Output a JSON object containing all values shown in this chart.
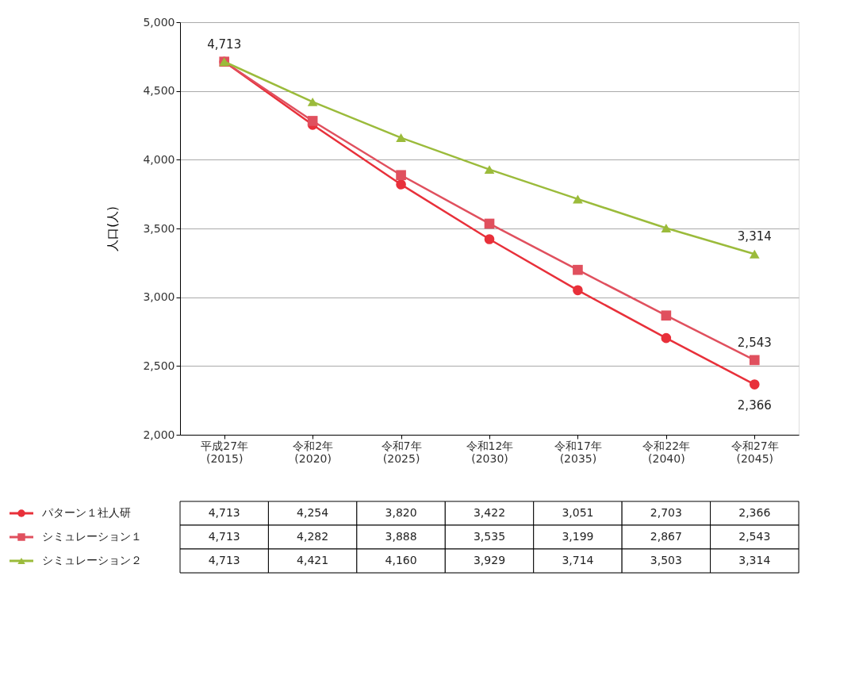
{
  "chart_data": {
    "type": "line",
    "ylabel": "人口(人)",
    "categories": [
      "平成27年(2015)",
      "令和2年(2020)",
      "令和7年(2025)",
      "令和12年(2030)",
      "令和17年(2035)",
      "令和22年(2040)",
      "令和27年(2045)"
    ],
    "series": [
      {
        "name": "パターン１社人研",
        "color": "#e8303a",
        "marker": "circle",
        "values": [
          4713,
          4254,
          3820,
          3422,
          3051,
          2703,
          2366
        ],
        "value_labels": [
          "4,713",
          "4,254",
          "3,820",
          "3,422",
          "3,051",
          "2,703",
          "2,366"
        ]
      },
      {
        "name": "シミュレーション１",
        "color": "#e0505e",
        "marker": "square",
        "values": [
          4713,
          4282,
          3888,
          3535,
          3199,
          2867,
          2543
        ],
        "value_labels": [
          "4,713",
          "4,282",
          "3,888",
          "3,535",
          "3,199",
          "2,867",
          "2,543"
        ]
      },
      {
        "name": "シミュレーション２",
        "color": "#9bbb3b",
        "marker": "triangle",
        "values": [
          4713,
          4421,
          4160,
          3929,
          3714,
          3503,
          3314
        ],
        "value_labels": [
          "4,713",
          "4,421",
          "4,160",
          "3,929",
          "3,714",
          "3,503",
          "3,314"
        ]
      }
    ],
    "annotations": [
      {
        "text": "4,713",
        "x": "平成27年(2015)",
        "y": 4713
      },
      {
        "text": "3,314",
        "x": "令和27年(2045)",
        "y": 3314
      },
      {
        "text": "2,543",
        "x": "令和27年(2045)",
        "y": 2543
      },
      {
        "text": "2,366",
        "x": "令和27年(2045)",
        "y": 2366
      }
    ],
    "ylim": [
      2000,
      5000
    ],
    "yticks": [
      {
        "value": 2000,
        "label": "2,000"
      },
      {
        "value": 2500,
        "label": "2,500"
      },
      {
        "value": 3000,
        "label": "3,000"
      },
      {
        "value": 3500,
        "label": "3,500"
      },
      {
        "value": 4000,
        "label": "4,000"
      },
      {
        "value": 4500,
        "label": "4,500"
      },
      {
        "value": 5000,
        "label": "5,000"
      }
    ],
    "grid": "y",
    "legend": "bottom left"
  }
}
